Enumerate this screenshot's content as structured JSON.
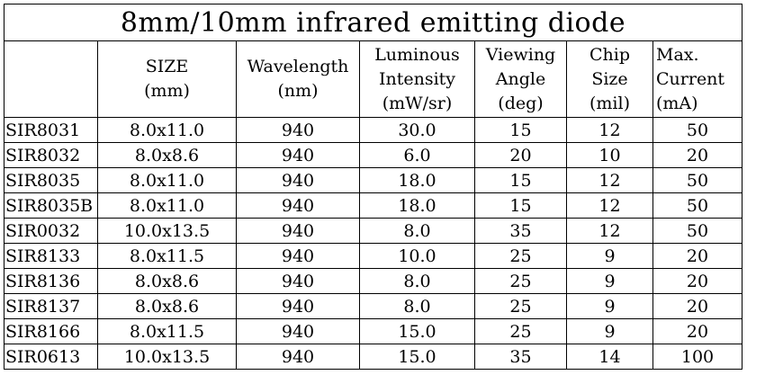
{
  "title": "8mm/10mm infrared emitting diode",
  "headers": [
    {
      "lines": [
        "",
        ""
      ]
    },
    {
      "lines": [
        "SIZE",
        "(mm)"
      ]
    },
    {
      "lines": [
        "Wavelength",
        "(nm)"
      ]
    },
    {
      "lines": [
        "Luminous",
        "Intensity",
        "(mW/sr)"
      ]
    },
    {
      "lines": [
        "Viewing",
        "Angle",
        "(deg)"
      ]
    },
    {
      "lines": [
        "Chip",
        "Size",
        "(mil)"
      ]
    },
    {
      "lines": [
        "Max.",
        "Current",
        "(mA)"
      ]
    }
  ],
  "rows": [
    [
      "SIR8031",
      "8.0x11.0",
      "940",
      "30.0",
      "15",
      "12",
      "50"
    ],
    [
      "SIR8032",
      "8.0x8.6",
      "940",
      "6.0",
      "20",
      "10",
      "20"
    ],
    [
      "SIR8035",
      "8.0x11.0",
      "940",
      "18.0",
      "15",
      "12",
      "50"
    ],
    [
      "SIR8035B",
      "8.0x11.0",
      "940",
      "18.0",
      "15",
      "12",
      "50"
    ],
    [
      "SIR0032",
      "10.0x13.5",
      "940",
      "8.0",
      "35",
      "12",
      "50"
    ],
    [
      "SIR8133",
      "8.0x11.5",
      "940",
      "10.0",
      "25",
      "9",
      "20"
    ],
    [
      "SIR8136",
      "8.0x8.6",
      "940",
      "8.0",
      "25",
      "9",
      "20"
    ],
    [
      "SIR8137",
      "8.0x8.6",
      "940",
      "8.0",
      "25",
      "9",
      "20"
    ],
    [
      "SIR8166",
      "8.0x11.5",
      "940",
      "15.0",
      "25",
      "9",
      "20"
    ],
    [
      "SIR0613",
      "10.0x13.5",
      "940",
      "15.0",
      "35",
      "14",
      "100"
    ]
  ]
}
